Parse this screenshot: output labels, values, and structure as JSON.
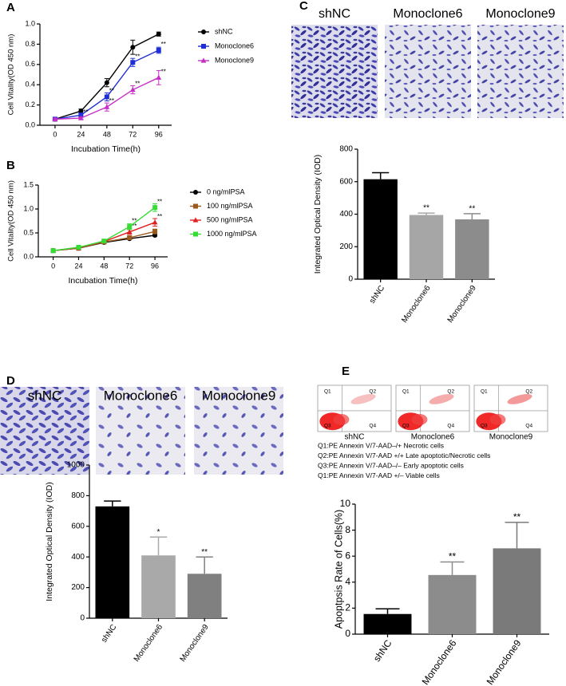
{
  "chart_data": [
    {
      "panel": "A",
      "type": "line",
      "x": [
        0,
        24,
        48,
        72,
        96
      ],
      "xlim": [
        -14,
        108
      ],
      "xticks": [
        0,
        24,
        48,
        72,
        96
      ],
      "ylim": [
        0,
        1
      ],
      "yticks": [
        {
          "value": 0,
          "label": "0.0"
        },
        0.2,
        0.4,
        0.6,
        0.8,
        {
          "value": 1,
          "label": "1.0"
        }
      ],
      "x_label": "Incubation Time(h)",
      "y_label": "Cell Vitality(OD 450 nm)",
      "series": [
        {
          "name": "shNC",
          "color": "#000000",
          "marker": "circle",
          "values": [
            0.06,
            0.14,
            0.42,
            0.77,
            0.9
          ],
          "errors": [
            0.01,
            0.02,
            0.04,
            0.07,
            0.02
          ],
          "annotations": [
            null,
            null,
            null,
            null,
            null
          ]
        },
        {
          "name": "Monoclone6",
          "color": "#1f2fd6",
          "marker": "square",
          "values": [
            0.06,
            0.1,
            0.28,
            0.62,
            0.74
          ],
          "errors": [
            0.01,
            0.02,
            0.04,
            0.04,
            0.03
          ],
          "annotations": [
            null,
            null,
            "**",
            "**",
            "**"
          ]
        },
        {
          "name": "Monoclone9",
          "color": "#c62fc6",
          "marker": "triangle",
          "values": [
            0.06,
            0.07,
            0.18,
            0.35,
            0.47
          ],
          "errors": [
            0.01,
            0.01,
            0.04,
            0.04,
            0.07
          ],
          "annotations": [
            null,
            "**",
            "**",
            "**",
            "**"
          ]
        }
      ]
    },
    {
      "panel": "B",
      "type": "line",
      "x": [
        0,
        24,
        48,
        72,
        96
      ],
      "xlim": [
        -14,
        108
      ],
      "xticks": [
        0,
        24,
        48,
        72,
        96
      ],
      "ylim": [
        0,
        1.5
      ],
      "yticks": [
        {
          "value": 0,
          "label": "0.0"
        },
        0.5,
        {
          "value": 1,
          "label": "1.0"
        },
        1.5
      ],
      "x_label": "Incubation Time(h)",
      "y_label": "Cell Vitality(OD 450 nm)",
      "series": [
        {
          "name": "0 ng/mlPSA",
          "color": "#000000",
          "marker": "circle",
          "values": [
            0.13,
            0.18,
            0.3,
            0.38,
            0.45
          ],
          "errors": [
            0.01,
            0.01,
            0.02,
            0.02,
            0.02
          ],
          "annotations": [
            null,
            null,
            null,
            null,
            null
          ]
        },
        {
          "name": "100 ng/mlPSA",
          "color": "#9a5a1e",
          "marker": "square",
          "values": [
            0.13,
            0.18,
            0.31,
            0.4,
            0.53
          ],
          "errors": [
            0.01,
            0.01,
            0.02,
            0.03,
            0.05
          ],
          "annotations": [
            null,
            null,
            null,
            null,
            null
          ]
        },
        {
          "name": "500 ng/mlPSA",
          "color": "#e02020",
          "marker": "triangle",
          "values": [
            0.13,
            0.19,
            0.32,
            0.52,
            0.72
          ],
          "errors": [
            0.01,
            0.01,
            0.02,
            0.05,
            0.08
          ],
          "annotations": [
            null,
            null,
            null,
            "**",
            "**"
          ]
        },
        {
          "name": "1000 ng/mlPSA",
          "color": "#33dd33",
          "marker": "square",
          "values": [
            0.13,
            0.2,
            0.33,
            0.63,
            1.03
          ],
          "errors": [
            0.01,
            0.01,
            0.02,
            0.06,
            0.08
          ],
          "annotations": [
            null,
            null,
            null,
            "**",
            "**"
          ]
        }
      ]
    },
    {
      "panel": "C",
      "type": "bar",
      "image_labels": [
        "shNC",
        "Monoclone6",
        "Monoclone9"
      ],
      "categories": [
        "shNC",
        "Monoclone6",
        "Monoclone9"
      ],
      "values": [
        615,
        395,
        368
      ],
      "errors": [
        40,
        12,
        35
      ],
      "colors": [
        "#000000",
        "#a6a6a6",
        "#8c8c8c"
      ],
      "value_annotations": [
        null,
        "**",
        "**"
      ],
      "ylim": [
        0,
        800
      ],
      "yticks": [
        0,
        200,
        400,
        600,
        800
      ],
      "y_label": "Integrated Optical Density (IOD)"
    },
    {
      "panel": "D",
      "type": "bar",
      "image_labels": [
        "shNC",
        "Monoclone6",
        "Monoclone9"
      ],
      "categories": [
        "shNC",
        "Monoclone6",
        "Monoclone9"
      ],
      "values": [
        730,
        410,
        290
      ],
      "errors": [
        35,
        120,
        110
      ],
      "colors": [
        "#000000",
        "#a9a9a9",
        "#808080"
      ],
      "value_annotations": [
        null,
        "*",
        "**"
      ],
      "ylim": [
        0,
        1000
      ],
      "yticks": [
        0,
        200,
        400,
        600,
        800,
        1000
      ],
      "y_label": "Integrated Optical Density (IOD)"
    },
    {
      "panel": "E",
      "type": "bar",
      "image_labels": [
        "shNC",
        "Monoclone6",
        "Monoclone9"
      ],
      "quadrant_labels": [
        "Q1",
        "Q2",
        "Q3",
        "Q4"
      ],
      "notes": [
        "Q1:PE Annexin V/7-AAD–/+  Necrotic cells",
        "Q2:PE Annexin V/7-AAD +/+  Late apoptotic/Necrotic cells",
        "Q3:PE Annexin V/7-AAD–/–  Early apoptotic cells",
        "Q1:PE Annexin V/7-AAD +/–  Viable cells"
      ],
      "categories": [
        "shNC",
        "Monoclone6",
        "Monoclone9"
      ],
      "values": [
        1.55,
        4.55,
        6.6
      ],
      "errors": [
        0.4,
        1.0,
        2.0
      ],
      "colors": [
        "#000000",
        "#8c8c8c",
        "#7a7a7a"
      ],
      "value_annotations": [
        null,
        "**",
        "**"
      ],
      "ylim": [
        0,
        10
      ],
      "yticks": [
        0,
        2,
        4,
        6,
        8,
        10
      ],
      "y_label": "Apoptpsis Rate of Cells(%)"
    }
  ]
}
